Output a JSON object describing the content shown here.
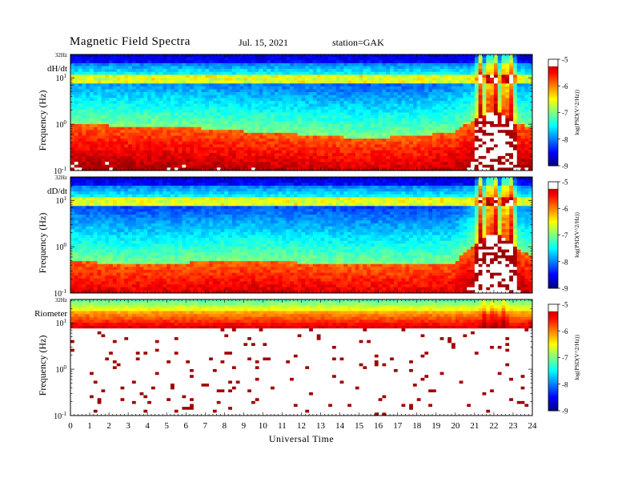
{
  "header": {
    "title": "Magnetic  Field  Spectra",
    "date": "Jul.  15, 2021",
    "station": "station=GAK"
  },
  "chart_data": [
    {
      "type": "heatmap",
      "panel_label": "dH/dt",
      "top_label": "32Hz",
      "ylabel": "Frequency  (Hz)",
      "y_ticks": [
        {
          "value": 10,
          "label": "10",
          "exp": "1"
        },
        {
          "value": 1,
          "label": "10",
          "exp": "0"
        },
        {
          "value": 0.1,
          "label": "10",
          "exp": "-1"
        }
      ],
      "ylim": [
        0.1,
        32
      ],
      "y_scale": "log",
      "colorbar": {
        "label": "log(PSD(V^2/Hz))",
        "ticks": [
          -5,
          -6,
          -7,
          -8,
          -9
        ],
        "range": [
          -9,
          -5
        ]
      },
      "event_hours": [
        21.3,
        21.8,
        22.1,
        22.6,
        22.9
      ],
      "floor_freq_hz": 1.1,
      "floor_curve": [
        [
          0,
          1.0
        ],
        [
          3,
          0.9
        ],
        [
          6,
          0.85
        ],
        [
          9,
          0.7
        ],
        [
          12,
          0.6
        ],
        [
          15,
          0.5
        ],
        [
          18,
          0.55
        ],
        [
          20,
          0.7
        ],
        [
          21,
          1.2
        ],
        [
          22,
          2.0
        ],
        [
          23,
          1.0
        ],
        [
          24,
          0.9
        ]
      ]
    },
    {
      "type": "heatmap",
      "panel_label": "dD/dt",
      "top_label": "32Hz",
      "ylabel": "Frequency  (Hz)",
      "y_ticks": [
        {
          "value": 10,
          "label": "10",
          "exp": "1"
        },
        {
          "value": 1,
          "label": "10",
          "exp": "0"
        },
        {
          "value": 0.1,
          "label": "10",
          "exp": "-1"
        }
      ],
      "ylim": [
        0.1,
        32
      ],
      "y_scale": "log",
      "colorbar": {
        "label": "log(PSD(V^2/Hz))",
        "ticks": [
          -5,
          -6,
          -7,
          -8,
          -9
        ],
        "range": [
          -9,
          -5
        ]
      },
      "event_hours": [
        21.3,
        21.8,
        22.1,
        22.6,
        22.9
      ],
      "floor_curve": [
        [
          0,
          0.5
        ],
        [
          3,
          0.4
        ],
        [
          6,
          0.45
        ],
        [
          9,
          0.5
        ],
        [
          12,
          0.45
        ],
        [
          15,
          0.4
        ],
        [
          18,
          0.4
        ],
        [
          20,
          0.45
        ],
        [
          21,
          1.0
        ],
        [
          22,
          2.0
        ],
        [
          23,
          1.0
        ],
        [
          24,
          0.6
        ]
      ]
    },
    {
      "type": "heatmap",
      "panel_label": "Riometer",
      "top_label": "32Hz",
      "ylabel": "Frequency  (Hz)",
      "y_ticks": [
        {
          "value": 10,
          "label": "10",
          "exp": "1"
        },
        {
          "value": 1,
          "label": "10",
          "exp": "0"
        },
        {
          "value": 0.1,
          "label": "10",
          "exp": "-1"
        }
      ],
      "ylim": [
        0.1,
        32
      ],
      "y_scale": "log",
      "colorbar": {
        "label": "log(PSD(V^2/Hz))",
        "ticks": [
          -5,
          -6,
          -7,
          -8,
          -9
        ],
        "range": [
          -9,
          -5
        ]
      },
      "event_hours": [
        21.5,
        22.0,
        22.5
      ],
      "floor_curve": [
        [
          0,
          6
        ],
        [
          6,
          6
        ],
        [
          12,
          6
        ],
        [
          18,
          6
        ],
        [
          20,
          5
        ],
        [
          21,
          6
        ],
        [
          22,
          9
        ],
        [
          23,
          7
        ],
        [
          24,
          6
        ]
      ]
    }
  ],
  "x_axis": {
    "label": "Universal  Time",
    "ticks": [
      "0",
      "1",
      "2",
      "3",
      "4",
      "5",
      "6",
      "7",
      "8",
      "9",
      "10",
      "11",
      "12",
      "13",
      "14",
      "15",
      "16",
      "17",
      "18",
      "19",
      "20",
      "21",
      "22",
      "23",
      "24"
    ],
    "xlim": [
      0,
      24
    ]
  }
}
